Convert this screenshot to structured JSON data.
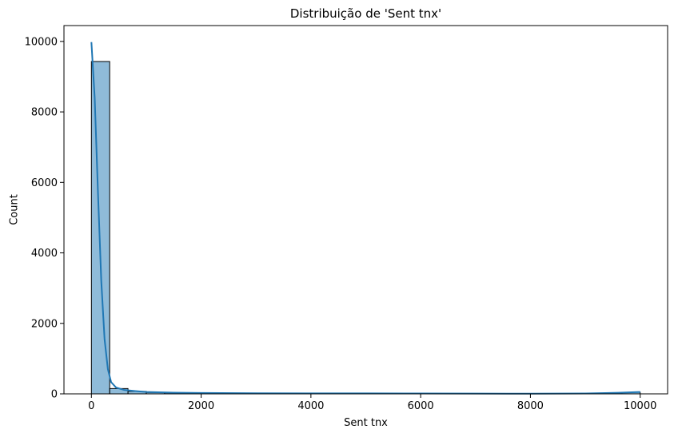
{
  "chart_data": {
    "type": "bar",
    "title": "Distribuição de 'Sent tnx'",
    "xlabel": "Sent tnx",
    "ylabel": "Count",
    "xlim": [
      -500,
      10500
    ],
    "ylim": [
      0,
      10450
    ],
    "xticks": [
      0,
      2000,
      4000,
      6000,
      8000,
      10000
    ],
    "yticks": [
      0,
      2000,
      4000,
      6000,
      8000,
      10000
    ],
    "bin_width": 333.3,
    "bins_start": [
      0,
      333.3,
      666.7,
      1000,
      1333.3,
      1666.7,
      2000,
      2333.3,
      2666.7,
      3000,
      3333.3,
      3666.7,
      4000,
      4333.3,
      4666.7,
      5000,
      5333.3,
      5666.7,
      6000,
      6333.3,
      6666.7,
      7000,
      7333.3,
      7666.7,
      8000,
      8333.3,
      8666.7,
      9000,
      9333.3,
      9666.7
    ],
    "values": [
      9430,
      150,
      70,
      40,
      30,
      20,
      12,
      10,
      8,
      7,
      6,
      5,
      5,
      4,
      4,
      4,
      3,
      3,
      3,
      2,
      2,
      2,
      2,
      2,
      2,
      2,
      2,
      2,
      2,
      45
    ],
    "kde": {
      "x": [
        0,
        60,
        120,
        180,
        240,
        300,
        360,
        450,
        600,
        800,
        1000,
        1500,
        2000,
        3000,
        4000,
        5000,
        6000,
        7000,
        8000,
        9000,
        9600,
        10000
      ],
      "y": [
        9980,
        8400,
        5700,
        3200,
        1550,
        700,
        330,
        180,
        110,
        80,
        55,
        35,
        25,
        18,
        15,
        14,
        10,
        8,
        6,
        12,
        30,
        55
      ]
    },
    "bar_color": "#1f77b4",
    "bar_fill_opacity": 0.5,
    "bar_edge_color": "#000000",
    "line_color": "#1f77b4",
    "grid": false,
    "legend": "none"
  }
}
